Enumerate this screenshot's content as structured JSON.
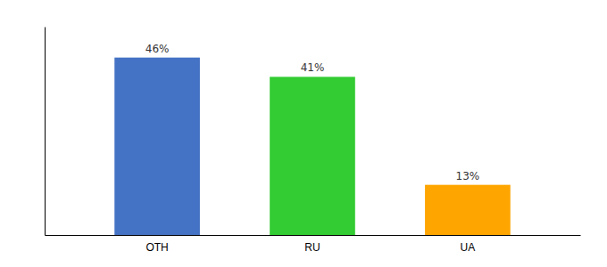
{
  "chart_data": {
    "type": "bar",
    "categories": [
      "OTH",
      "RU",
      "UA"
    ],
    "values": [
      46,
      41,
      13
    ],
    "value_labels": [
      "46%",
      "41%",
      "13%"
    ],
    "colors": [
      "#4472C4",
      "#33CC33",
      "#FFA500"
    ],
    "ylim": [
      0,
      54
    ],
    "data_labels": true,
    "tick_labels": "x",
    "grid": false
  }
}
